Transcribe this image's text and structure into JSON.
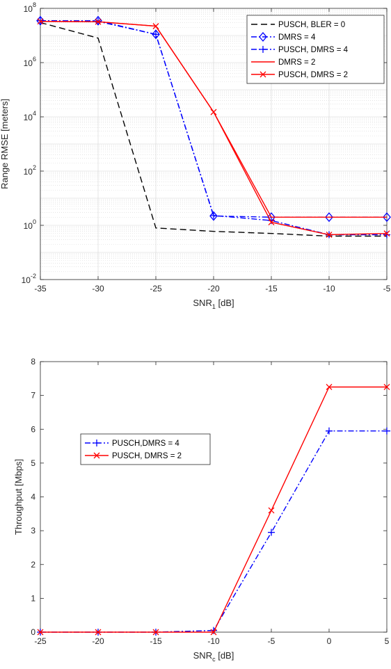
{
  "chart_data": [
    {
      "type": "line",
      "xlabel": {
        "main": "SNR",
        "sub": "1",
        "unit": " [dB]"
      },
      "ylabel": "Range RMSE [meters]",
      "xlim": [
        -35,
        -5
      ],
      "ylim": [
        0.01,
        100000000
      ],
      "yscale": "log",
      "grid": true,
      "legend_position": "top-right",
      "x_ticks": [
        "-35",
        "-30",
        "-25",
        "-20",
        "-15",
        "-10",
        "-5"
      ],
      "y_ticks": [
        {
          "value": 0.01,
          "base": "10",
          "exp": "-2"
        },
        {
          "value": 1,
          "base": "10",
          "exp": "0"
        },
        {
          "value": 100,
          "base": "10",
          "exp": "2"
        },
        {
          "value": 10000,
          "base": "10",
          "exp": "4"
        },
        {
          "value": 1000000,
          "base": "10",
          "exp": "6"
        },
        {
          "value": 100000000,
          "base": "10",
          "exp": "8"
        }
      ],
      "x": [
        -35,
        -30,
        -25,
        -20,
        -15,
        -10,
        -5
      ],
      "series": [
        {
          "name": "PUSCH, BLER = 0",
          "color": "#000000",
          "dash": "9,5",
          "marker": "none",
          "values": [
            30000000,
            8000000,
            0.8,
            0.6,
            0.5,
            0.4,
            0.4
          ]
        },
        {
          "name": "DMRS = 4",
          "color": "#0000ff",
          "dash": "8,3,2,3",
          "marker": "diamond",
          "values": [
            35000000,
            35000000,
            11000000,
            2.2,
            2.0,
            2.0,
            2.0
          ]
        },
        {
          "name": "PUSCH, DMRS = 4",
          "color": "#0000ff",
          "dash": "8,3,2,3",
          "marker": "plus",
          "values": [
            35000000,
            33000000,
            11000000,
            2.3,
            1.5,
            0.45,
            0.45
          ]
        },
        {
          "name": "DMRS = 2",
          "color": "#ff0000",
          "dash": "",
          "marker": "none",
          "values": [
            33000000,
            32000000,
            22000000,
            15000,
            2.0,
            2.0,
            2.0
          ]
        },
        {
          "name": "PUSCH, DMRS = 2",
          "color": "#ff0000",
          "dash": "",
          "marker": "x",
          "values": [
            33000000,
            32000000,
            22000000,
            15000,
            1.3,
            0.45,
            0.5
          ]
        }
      ]
    },
    {
      "type": "line",
      "xlabel": {
        "main": "SNR",
        "sub": "c",
        "unit": " [dB]"
      },
      "ylabel": "Throughput [Mbps]",
      "xlim": [
        -25,
        5
      ],
      "ylim": [
        0,
        8
      ],
      "yscale": "linear",
      "grid": false,
      "legend_position": "middle-left",
      "x_ticks": [
        "-25",
        "-20",
        "-15",
        "-10",
        "-5",
        "0",
        "5"
      ],
      "y_ticks": [
        "0",
        "1",
        "2",
        "3",
        "4",
        "5",
        "6",
        "7",
        "8"
      ],
      "x": [
        -25,
        -20,
        -15,
        -10,
        -5,
        0,
        5
      ],
      "series": [
        {
          "name": "PUSCH,DMRS = 4",
          "color": "#0000ff",
          "dash": "8,3,2,3",
          "marker": "plus",
          "values": [
            0,
            0,
            0,
            0.05,
            2.95,
            5.95,
            5.95
          ]
        },
        {
          "name": "PUSCH, DMRS = 2",
          "color": "#ff0000",
          "dash": "",
          "marker": "x",
          "values": [
            0,
            0,
            0,
            0,
            3.6,
            7.25,
            7.25
          ]
        }
      ]
    }
  ]
}
